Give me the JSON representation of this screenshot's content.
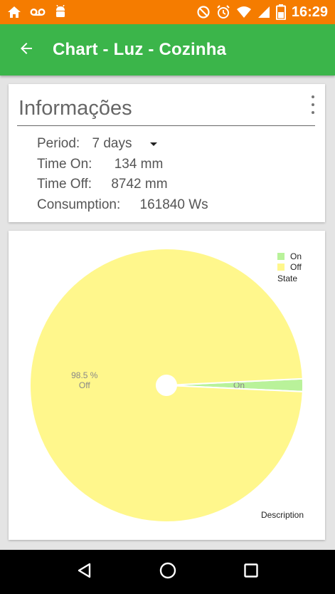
{
  "status_bar": {
    "time": "16:29",
    "left_icons": [
      "home-icon",
      "voicemail-icon",
      "android-icon"
    ],
    "right_icons": [
      "do-not-disturb-icon",
      "alarm-icon",
      "wifi-icon",
      "signal-icon",
      "battery-icon"
    ],
    "color": "#f57c00"
  },
  "app_bar": {
    "title": "Chart - Luz - Cozinha",
    "back_icon": "arrow-back-icon",
    "color": "#3bb54a"
  },
  "info_card": {
    "title": "Informações",
    "period_label": "Period:",
    "period_value": "7 days",
    "time_on_label": "Time On:",
    "time_on_value": "134 mm",
    "time_off_label": "Time Off:",
    "time_off_value": "8742 mm",
    "consumption_label": "Consumption:",
    "consumption_value": "161840 Ws",
    "menu_icon": "more-vert-icon"
  },
  "chart_data": {
    "type": "pie",
    "title": "",
    "legend_title": "State",
    "legend_position": "top-right",
    "description": "Description",
    "slices": [
      {
        "name": "On",
        "value": 1.5,
        "label": "1.5 %",
        "color": "#b9f29a"
      },
      {
        "name": "Off",
        "value": 98.5,
        "label": "98.5 %",
        "color": "#fff78c"
      }
    ]
  },
  "nav_bar": {
    "buttons": [
      "back-nav-icon",
      "home-nav-icon",
      "recents-nav-icon"
    ]
  }
}
